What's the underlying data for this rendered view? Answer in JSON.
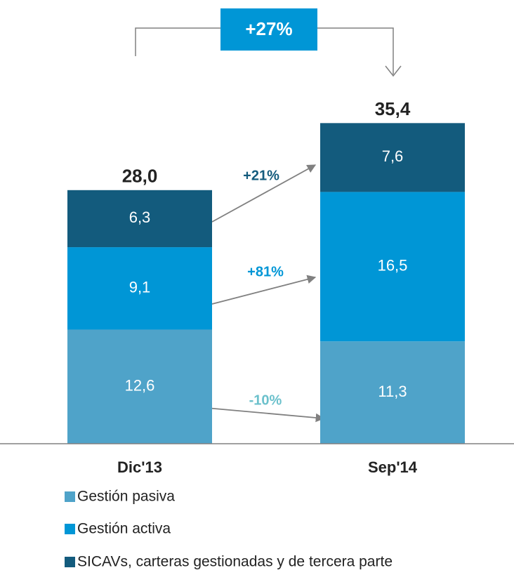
{
  "chart_data": {
    "type": "stacked_bar",
    "categories": [
      "Dic'13",
      "Sep'14"
    ],
    "series": [
      {
        "name": "Gestión pasiva",
        "color": "#4fa3c9",
        "values": [
          12.6,
          11.3
        ],
        "value_labels": [
          "12,6",
          "11,3"
        ]
      },
      {
        "name": "Gestión activa",
        "color": "#0096d6",
        "values": [
          9.1,
          16.5
        ],
        "value_labels": [
          "9,1",
          "16,5"
        ]
      },
      {
        "name": "SICAVs, carteras gestionadas y de tercera parte",
        "color": "#135b7d",
        "values": [
          6.3,
          7.6
        ],
        "value_labels": [
          "6,3",
          "7,6"
        ]
      }
    ],
    "totals": [
      28.0,
      35.4
    ],
    "total_labels": [
      "28,0",
      "35,4"
    ],
    "annotations": [
      {
        "text": "+27%",
        "color": "#0096d6"
      },
      {
        "text": "+21%",
        "color": "#135b7d"
      },
      {
        "text": "+81%",
        "color": "#0096d6"
      },
      {
        "text": "-10%",
        "color": "#6cc1cc"
      }
    ]
  }
}
